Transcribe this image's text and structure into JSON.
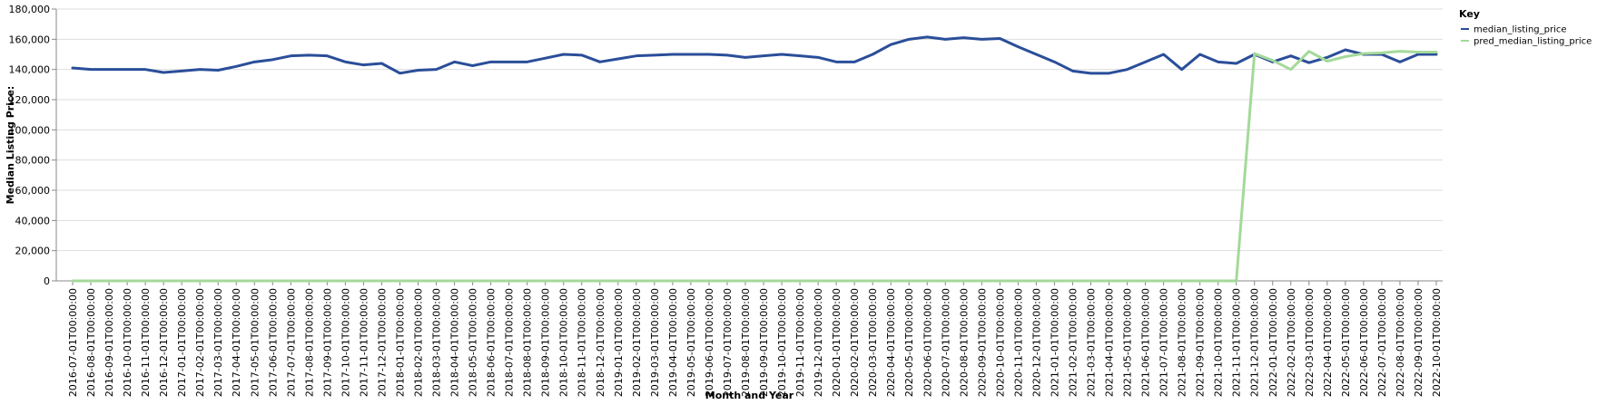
{
  "chart_data": {
    "type": "line",
    "title": "",
    "xlabel": "Month and Year",
    "ylabel": "Median Listing Price:",
    "ylim": [
      0,
      180000
    ],
    "yticks": [
      0,
      20000,
      40000,
      60000,
      80000,
      100000,
      120000,
      140000,
      160000,
      180000
    ],
    "ytick_labels": [
      "0",
      "20,000",
      "40,000",
      "60,000",
      "80,000",
      "100,000",
      "120,000",
      "140,000",
      "160,000",
      "180,000"
    ],
    "grid": true,
    "legend": {
      "title": "Key",
      "placement": "right"
    },
    "x": [
      "2016-07-01T00:00:00",
      "2016-08-01T00:00:00",
      "2016-09-01T00:00:00",
      "2016-10-01T00:00:00",
      "2016-11-01T00:00:00",
      "2016-12-01T00:00:00",
      "2017-01-01T00:00:00",
      "2017-02-01T00:00:00",
      "2017-03-01T00:00:00",
      "2017-04-01T00:00:00",
      "2017-05-01T00:00:00",
      "2017-06-01T00:00:00",
      "2017-07-01T00:00:00",
      "2017-08-01T00:00:00",
      "2017-09-01T00:00:00",
      "2017-10-01T00:00:00",
      "2017-11-01T00:00:00",
      "2017-12-01T00:00:00",
      "2018-01-01T00:00:00",
      "2018-02-01T00:00:00",
      "2018-03-01T00:00:00",
      "2018-04-01T00:00:00",
      "2018-05-01T00:00:00",
      "2018-06-01T00:00:00",
      "2018-07-01T00:00:00",
      "2018-08-01T00:00:00",
      "2018-09-01T00:00:00",
      "2018-10-01T00:00:00",
      "2018-11-01T00:00:00",
      "2018-12-01T00:00:00",
      "2019-01-01T00:00:00",
      "2019-02-01T00:00:00",
      "2019-03-01T00:00:00",
      "2019-04-01T00:00:00",
      "2019-05-01T00:00:00",
      "2019-06-01T00:00:00",
      "2019-07-01T00:00:00",
      "2019-08-01T00:00:00",
      "2019-09-01T00:00:00",
      "2019-10-01T00:00:00",
      "2019-11-01T00:00:00",
      "2019-12-01T00:00:00",
      "2020-01-01T00:00:00",
      "2020-02-01T00:00:00",
      "2020-03-01T00:00:00",
      "2020-04-01T00:00:00",
      "2020-05-01T00:00:00",
      "2020-06-01T00:00:00",
      "2020-07-01T00:00:00",
      "2020-08-01T00:00:00",
      "2020-09-01T00:00:00",
      "2020-10-01T00:00:00",
      "2020-11-01T00:00:00",
      "2020-12-01T00:00:00",
      "2021-01-01T00:00:00",
      "2021-02-01T00:00:00",
      "2021-03-01T00:00:00",
      "2021-04-01T00:00:00",
      "2021-05-01T00:00:00",
      "2021-06-01T00:00:00",
      "2021-07-01T00:00:00",
      "2021-08-01T00:00:00",
      "2021-09-01T00:00:00",
      "2021-10-01T00:00:00",
      "2021-11-01T00:00:00",
      "2021-12-01T00:00:00",
      "2022-01-01T00:00:00",
      "2022-02-01T00:00:00",
      "2022-03-01T00:00:00",
      "2022-04-01T00:00:00",
      "2022-05-01T00:00:00",
      "2022-06-01T00:00:00",
      "2022-07-01T00:00:00",
      "2022-08-01T00:00:00",
      "2022-09-01T00:00:00",
      "2022-10-01T00:00:00"
    ],
    "series": [
      {
        "name": "median_listing_price",
        "color": "#2a4e99",
        "values": [
          141000,
          140000,
          140000,
          140000,
          140000,
          138000,
          139000,
          140000,
          139500,
          142000,
          145000,
          146500,
          149000,
          149500,
          149000,
          145000,
          143000,
          144000,
          137500,
          139500,
          140000,
          145000,
          142500,
          145000,
          145000,
          145000,
          147500,
          150000,
          149500,
          145000,
          147000,
          149000,
          149500,
          150000,
          150000,
          150000,
          149500,
          148000,
          149000,
          150000,
          149000,
          148000,
          145000,
          145000,
          150000,
          156500,
          160000,
          161500,
          160000,
          161000,
          160000,
          160500,
          155000,
          150000,
          145000,
          139000,
          137500,
          137500,
          140000,
          145000,
          150000,
          140000,
          150000,
          145000,
          144000,
          150000,
          145000,
          149000,
          144500,
          148000,
          153000,
          150000,
          150000,
          145000,
          150000,
          150000
        ]
      },
      {
        "name": "pred_median_listing_price",
        "color": "#a4d99a",
        "values": [
          0,
          0,
          0,
          0,
          0,
          0,
          0,
          0,
          0,
          0,
          0,
          0,
          0,
          0,
          0,
          0,
          0,
          0,
          0,
          0,
          0,
          0,
          0,
          0,
          0,
          0,
          0,
          0,
          0,
          0,
          0,
          0,
          0,
          0,
          0,
          0,
          0,
          0,
          0,
          0,
          0,
          0,
          0,
          0,
          0,
          0,
          0,
          0,
          0,
          0,
          0,
          0,
          0,
          0,
          0,
          0,
          0,
          0,
          0,
          0,
          0,
          0,
          0,
          0,
          0,
          150500,
          146000,
          140000,
          152000,
          145500,
          148500,
          150500,
          151000,
          152000,
          151500,
          151500
        ]
      }
    ]
  }
}
